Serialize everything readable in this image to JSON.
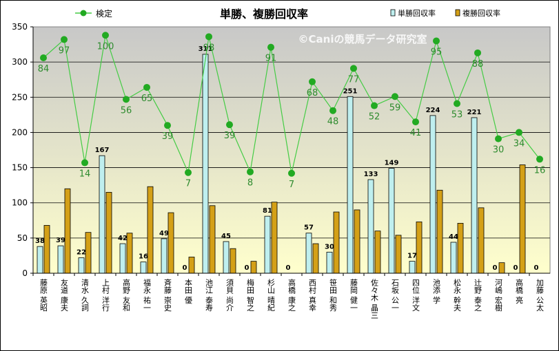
{
  "chart_data": {
    "type": "bar+line",
    "title": "単勝、複勝回収率",
    "watermark": "©Caniの競馬データ研究室",
    "ylim": [
      0,
      350
    ],
    "yticks": [
      0,
      50,
      100,
      150,
      200,
      250,
      300,
      350
    ],
    "legend": {
      "line_label": "検定",
      "bar1_label": "単勝回収率",
      "bar2_label": "複勝回収率",
      "placement": "top"
    },
    "colors": {
      "line": "#44CC44",
      "marker": "#22AA22",
      "bar1": "#BFEFEF",
      "bar2": "#D4A017",
      "plot_bg_top": "#C8C8C8",
      "plot_bg_bottom": "#FFFFCC",
      "label_line": "#2E8B2E"
    },
    "categories": [
      "藤原 英昭",
      "友道 康夫",
      "清水 久詞",
      "上村 洋行",
      "高野 友和",
      "福永 祐一",
      "斉藤 崇史",
      "本田 優",
      "池江 泰寿",
      "須貝 尚介",
      "梅田 智之",
      "杉山 晴紀",
      "高橋 康之",
      "西村 真幸",
      "笹田 和秀",
      "藤岡 健一",
      "佐々木 晶三",
      "石坂 公一",
      "四位 洋文",
      "池添 学",
      "松永 幹夫",
      "辻野 泰之",
      "河嶋 宏樹",
      "高橋 亮",
      "加藤 公太"
    ],
    "series": [
      {
        "name": "単勝回収率",
        "type": "bar",
        "values": [
          38,
          39,
          22,
          167,
          42,
          16,
          49,
          0,
          311,
          45,
          0,
          81,
          0,
          57,
          30,
          251,
          133,
          149,
          17,
          224,
          44,
          221,
          0,
          0,
          0
        ],
        "labels": [
          "38",
          "39",
          "22",
          "167",
          "42",
          "16",
          "49",
          "0",
          "311",
          "45",
          "0",
          "81",
          "0",
          "57",
          "30",
          "251",
          "133",
          "149",
          "17",
          "224",
          "44",
          "221",
          "0",
          "0",
          "0"
        ]
      },
      {
        "name": "複勝回収率",
        "type": "bar",
        "values": [
          68,
          120,
          58,
          115,
          57,
          123,
          86,
          23,
          96,
          35,
          17,
          101,
          0,
          42,
          87,
          90,
          60,
          54,
          73,
          118,
          71,
          93,
          15,
          154,
          0
        ]
      },
      {
        "name": "検定",
        "type": "line",
        "values": [
          306,
          332,
          157,
          338,
          247,
          264,
          210,
          143,
          336,
          211,
          144,
          321,
          142,
          272,
          231,
          291,
          238,
          251,
          215,
          330,
          241,
          313,
          191,
          200,
          162
        ],
        "labels": [
          "84",
          "97",
          "14",
          "100",
          "56",
          "65",
          "39",
          "7",
          "98",
          "39",
          "8",
          "91",
          "7",
          "68",
          "48",
          "77",
          "52",
          "59",
          "41",
          "95",
          "53",
          "88",
          "30",
          "34",
          "16"
        ]
      }
    ]
  }
}
